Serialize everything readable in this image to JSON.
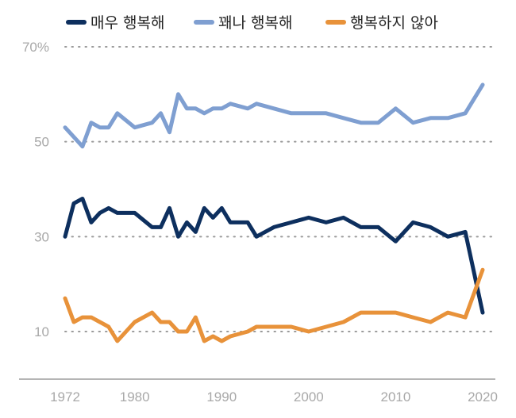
{
  "chart_data": {
    "type": "line",
    "title": "",
    "xlabel": "",
    "ylabel": "",
    "xlim": [
      1968,
      2022
    ],
    "ylim": [
      0,
      70
    ],
    "y_ticks": [
      10,
      30,
      50,
      70
    ],
    "y_tick_labels": [
      "10",
      "30",
      "50",
      "70%"
    ],
    "x_ticks": [
      1972,
      1980,
      1990,
      2000,
      2010,
      2020
    ],
    "x_tick_labels": [
      "1972",
      "1980",
      "1990",
      "2000",
      "2010",
      "2020"
    ],
    "grid": "dotted horizontal",
    "legend_position": "top",
    "series": [
      {
        "name": "매우 행복해",
        "color": "#0d2f5e",
        "points": [
          [
            1972,
            30
          ],
          [
            1973,
            37
          ],
          [
            1974,
            38
          ],
          [
            1975,
            33
          ],
          [
            1976,
            35
          ],
          [
            1977,
            36
          ],
          [
            1978,
            35
          ],
          [
            1980,
            35
          ],
          [
            1982,
            32
          ],
          [
            1983,
            32
          ],
          [
            1984,
            36
          ],
          [
            1985,
            30
          ],
          [
            1986,
            33
          ],
          [
            1987,
            31
          ],
          [
            1988,
            36
          ],
          [
            1989,
            34
          ],
          [
            1990,
            36
          ],
          [
            1991,
            33
          ],
          [
            1993,
            33
          ],
          [
            1994,
            30
          ],
          [
            1996,
            32
          ],
          [
            1998,
            33
          ],
          [
            2000,
            34
          ],
          [
            2002,
            33
          ],
          [
            2004,
            34
          ],
          [
            2006,
            32
          ],
          [
            2008,
            32
          ],
          [
            2010,
            29
          ],
          [
            2012,
            33
          ],
          [
            2014,
            32
          ],
          [
            2016,
            30
          ],
          [
            2018,
            31
          ],
          [
            2020,
            14
          ]
        ]
      },
      {
        "name": "꽤나 행복해",
        "color": "#7f9fd1",
        "points": [
          [
            1972,
            53
          ],
          [
            1973,
            51
          ],
          [
            1974,
            49
          ],
          [
            1975,
            54
          ],
          [
            1976,
            53
          ],
          [
            1977,
            53
          ],
          [
            1978,
            56
          ],
          [
            1980,
            53
          ],
          [
            1982,
            54
          ],
          [
            1983,
            56
          ],
          [
            1984,
            52
          ],
          [
            1985,
            60
          ],
          [
            1986,
            57
          ],
          [
            1987,
            57
          ],
          [
            1988,
            56
          ],
          [
            1989,
            57
          ],
          [
            1990,
            57
          ],
          [
            1991,
            58
          ],
          [
            1993,
            57
          ],
          [
            1994,
            58
          ],
          [
            1996,
            57
          ],
          [
            1998,
            56
          ],
          [
            2000,
            56
          ],
          [
            2002,
            56
          ],
          [
            2004,
            55
          ],
          [
            2006,
            54
          ],
          [
            2008,
            54
          ],
          [
            2010,
            57
          ],
          [
            2012,
            54
          ],
          [
            2014,
            55
          ],
          [
            2016,
            55
          ],
          [
            2018,
            56
          ],
          [
            2020,
            62
          ]
        ]
      },
      {
        "name": "행복하지 않아",
        "color": "#e8923a",
        "points": [
          [
            1972,
            17
          ],
          [
            1973,
            12
          ],
          [
            1974,
            13
          ],
          [
            1975,
            13
          ],
          [
            1976,
            12
          ],
          [
            1977,
            11
          ],
          [
            1978,
            8
          ],
          [
            1980,
            12
          ],
          [
            1982,
            14
          ],
          [
            1983,
            12
          ],
          [
            1984,
            12
          ],
          [
            1985,
            10
          ],
          [
            1986,
            10
          ],
          [
            1987,
            13
          ],
          [
            1988,
            8
          ],
          [
            1989,
            9
          ],
          [
            1990,
            8
          ],
          [
            1991,
            9
          ],
          [
            1993,
            10
          ],
          [
            1994,
            11
          ],
          [
            1996,
            11
          ],
          [
            1998,
            11
          ],
          [
            2000,
            10
          ],
          [
            2002,
            11
          ],
          [
            2004,
            12
          ],
          [
            2006,
            14
          ],
          [
            2008,
            14
          ],
          [
            2010,
            14
          ],
          [
            2012,
            13
          ],
          [
            2014,
            12
          ],
          [
            2016,
            14
          ],
          [
            2018,
            13
          ],
          [
            2020,
            23
          ]
        ]
      }
    ]
  }
}
